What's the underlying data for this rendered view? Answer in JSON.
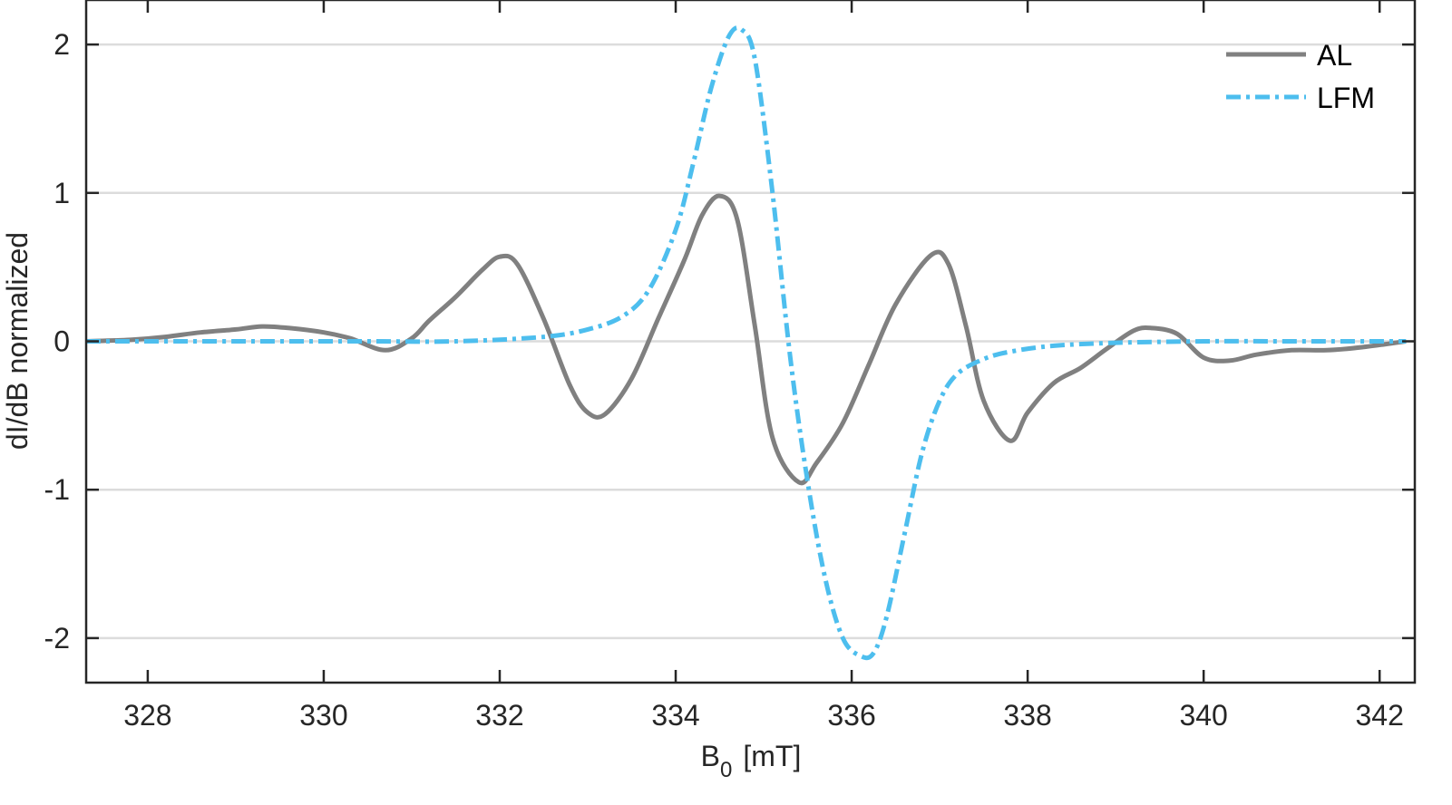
{
  "chart_data": {
    "type": "line",
    "title": "",
    "xlabel": "B",
    "xlabel_sub": "0",
    "xlabel_unit": "[mT]",
    "ylabel": "dI/dB normalized",
    "xlim": [
      327.3,
      342.4
    ],
    "ylim": [
      -2.3,
      2.3
    ],
    "xticks": [
      328,
      330,
      332,
      334,
      336,
      338,
      340,
      342
    ],
    "xtick_labels": [
      "328",
      "330",
      "332",
      "334",
      "336",
      "338",
      "340",
      "342"
    ],
    "yticks": [
      2,
      1,
      0,
      -1,
      -2
    ],
    "ytick_labels": [
      "2",
      "1",
      "0",
      "-1",
      "-2"
    ],
    "grid": "horizontal",
    "legend_position": "top-right",
    "series": [
      {
        "name": "AL",
        "color": "#808080",
        "style": "solid",
        "x": [
          327.3,
          327.8,
          328.2,
          328.6,
          329.0,
          329.3,
          329.6,
          330.0,
          330.3,
          330.7,
          331.0,
          331.2,
          331.5,
          331.8,
          332.0,
          332.2,
          332.5,
          332.8,
          333.0,
          333.2,
          333.5,
          333.8,
          334.1,
          334.3,
          334.5,
          334.7,
          334.9,
          335.1,
          335.4,
          335.6,
          335.9,
          336.2,
          336.5,
          336.9,
          337.1,
          337.3,
          337.5,
          337.8,
          338.0,
          338.3,
          338.6,
          338.9,
          339.2,
          339.4,
          339.7,
          340.0,
          340.3,
          340.6,
          341.0,
          341.4,
          341.8,
          342.3
        ],
        "y": [
          0.0,
          0.01,
          0.03,
          0.06,
          0.08,
          0.1,
          0.09,
          0.06,
          0.02,
          -0.06,
          0.02,
          0.14,
          0.3,
          0.48,
          0.57,
          0.52,
          0.15,
          -0.3,
          -0.48,
          -0.49,
          -0.25,
          0.15,
          0.55,
          0.85,
          0.98,
          0.82,
          0.1,
          -0.65,
          -0.95,
          -0.82,
          -0.55,
          -0.15,
          0.25,
          0.58,
          0.52,
          0.1,
          -0.4,
          -0.67,
          -0.48,
          -0.28,
          -0.18,
          -0.05,
          0.07,
          0.09,
          0.05,
          -0.11,
          -0.13,
          -0.09,
          -0.06,
          -0.06,
          -0.04,
          0.0
        ]
      },
      {
        "name": "LFM",
        "color": "#4DBEEE",
        "style": "dashdot",
        "x": [
          327.3,
          328.5,
          329.5,
          330.5,
          331.5,
          332.5,
          333.0,
          333.4,
          333.7,
          334.0,
          334.2,
          334.4,
          334.6,
          334.75,
          334.9,
          335.1,
          335.3,
          335.5,
          335.7,
          335.9,
          336.1,
          336.25,
          336.4,
          336.6,
          336.8,
          337.0,
          337.2,
          337.5,
          337.8,
          338.3,
          339.0,
          340.0,
          341.0,
          342.3
        ],
        "y": [
          0.0,
          0.0,
          0.0,
          0.0,
          0.0,
          0.03,
          0.08,
          0.17,
          0.35,
          0.75,
          1.2,
          1.7,
          2.05,
          2.1,
          1.9,
          1.0,
          -0.1,
          -0.95,
          -1.6,
          -2.0,
          -2.12,
          -2.1,
          -1.85,
          -1.3,
          -0.75,
          -0.4,
          -0.22,
          -0.12,
          -0.07,
          -0.03,
          -0.01,
          0.0,
          0.0,
          0.0
        ]
      }
    ]
  }
}
